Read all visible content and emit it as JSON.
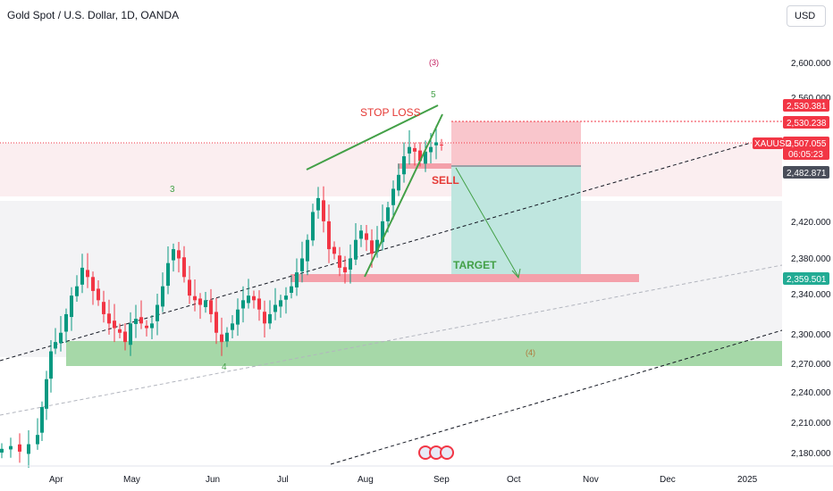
{
  "header": {
    "title": "Gold Spot / U.S. Dollar, 1D, OANDA",
    "currency": "USD"
  },
  "chart_data": {
    "type": "candlestick",
    "symbol": "XAUUSD",
    "x_axis": {
      "ticks": [
        "Apr",
        "May",
        "Jun",
        "Jul",
        "Aug",
        "Sep",
        "Oct",
        "Nov",
        "Dec",
        "2025"
      ]
    },
    "y_axis": {
      "range": [
        2170,
        2640
      ],
      "ticks": [
        "2,600.000",
        "2,560.000",
        "2,420.000",
        "2,380.000",
        "2,340.000",
        "2,300.000",
        "2,270.000",
        "2,240.000",
        "2,210.000",
        "2,180.000"
      ]
    },
    "price_tags": [
      {
        "value": "2,530.381",
        "color": "#f23645"
      },
      {
        "value": "2,530.238",
        "color": "#f23645"
      },
      {
        "value": "2,507.055",
        "color": "#f23645",
        "extra": "06:05:23",
        "symbol_label": "XAUUSD"
      },
      {
        "value": "2,482.871",
        "color": "#4a4e5a"
      },
      {
        "value": "2,359.501",
        "color": "#22ab94"
      }
    ],
    "annotations": {
      "stop_loss": "STOP LOSS",
      "sell": "SELL",
      "target": "TARGET",
      "wave_3_top": "(3)",
      "wave_5": "5",
      "wave_3": "3",
      "wave_4": "4",
      "wave_4_zone": "(4)"
    },
    "trade": {
      "direction": "short",
      "entry": 2482.871,
      "stop": 2530.238,
      "target": 2359.501
    },
    "colors": {
      "up": "#089981",
      "down": "#f23645",
      "stop_zone": "#f9c6cc",
      "profit_zone": "#bfe6df",
      "support_zone": "#a6d8a8"
    }
  }
}
